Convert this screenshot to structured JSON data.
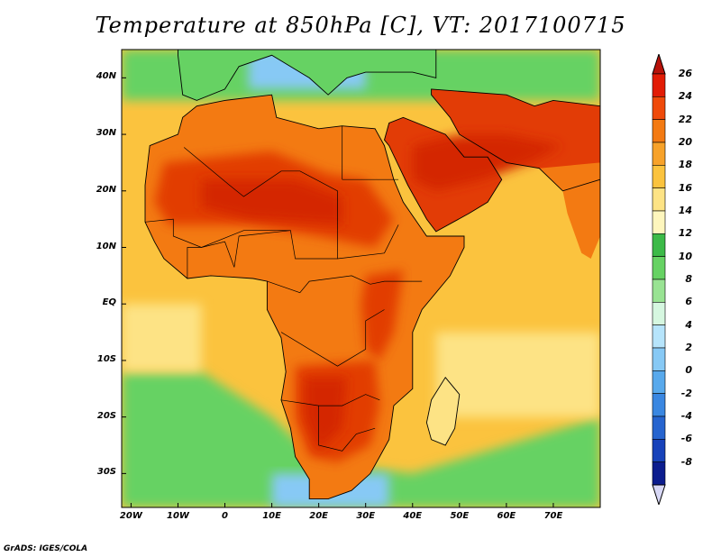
{
  "title": "Temperature at 850hPa [C], VT: 2017100715",
  "credit": "GrADS: IGES/COLA",
  "lat_ticks": [
    "40N",
    "30N",
    "20N",
    "10N",
    "EQ",
    "10S",
    "20S",
    "30S"
  ],
  "lat_values": [
    40,
    30,
    20,
    10,
    0,
    -10,
    -20,
    -30
  ],
  "lon_ticks": [
    "20W",
    "10W",
    "0",
    "10E",
    "20E",
    "30E",
    "40E",
    "50E",
    "60E",
    "70E"
  ],
  "lon_values": [
    -20,
    -10,
    0,
    10,
    20,
    30,
    40,
    50,
    60,
    70
  ],
  "extent": {
    "lon_min": -22,
    "lon_max": 80,
    "lat_min": -36,
    "lat_max": 45
  },
  "colorbar": {
    "labels": [
      "26",
      "24",
      "22",
      "20",
      "18",
      "16",
      "14",
      "12",
      "10",
      "8",
      "6",
      "4",
      "2",
      "0",
      "-2",
      "-4",
      "-6",
      "-8"
    ],
    "colors": [
      "#e21c05",
      "#ef4a0a",
      "#f37a12",
      "#f7a22a",
      "#fbc33e",
      "#fde385",
      "#fef6bd",
      "#3cba48",
      "#66d263",
      "#99e393",
      "#d6f7e0",
      "#b6e4fb",
      "#87c9f5",
      "#58a9ec",
      "#3a87e1",
      "#2664cf",
      "#1742ba",
      "#0c1d8e"
    ],
    "top_triangle": "#b8120a",
    "bottom_triangle": "#d8d8f6"
  },
  "colors": {
    "ocean_warm": "#fbc33e",
    "ocean_cool": "#fde385",
    "land_hot": "#e23c06",
    "land_very_hot": "#d42704",
    "land_warm": "#f37a12",
    "cool_green": "#66d263",
    "cold_blue": "#87c9f5",
    "border": "#000000"
  }
}
